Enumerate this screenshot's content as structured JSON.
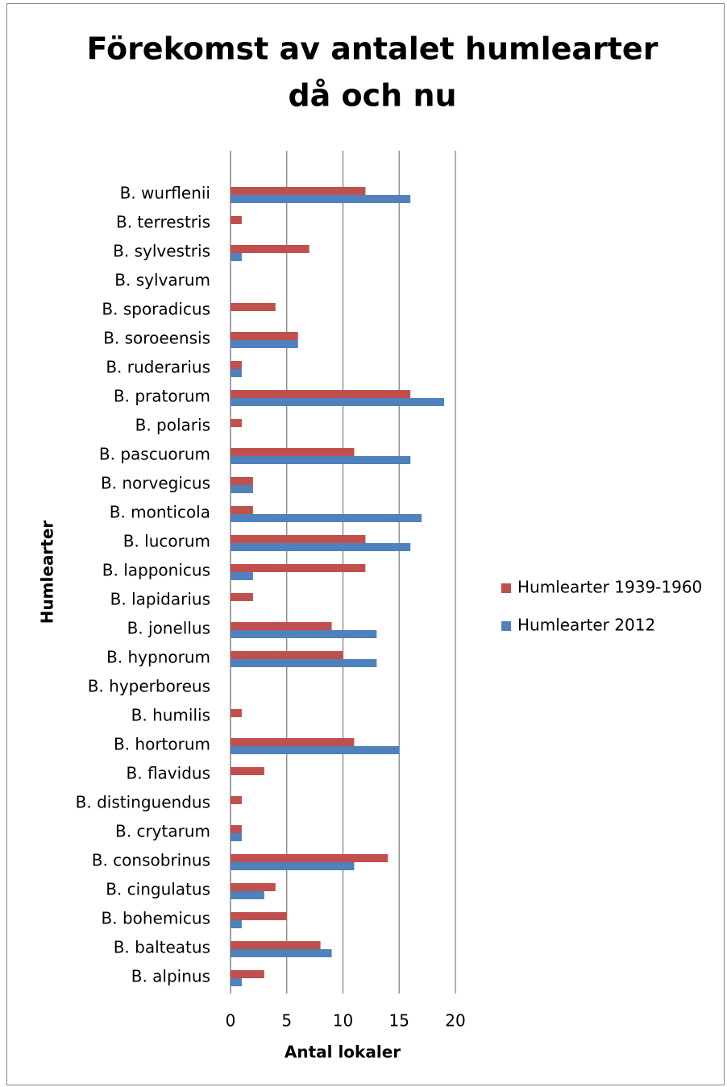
{
  "chart_data": {
    "type": "bar",
    "orientation": "horizontal",
    "title": [
      "Förekomst av antalet humlearter",
      "då och nu"
    ],
    "x_label": "Antal lokaler",
    "y_label": "Humlearter",
    "categories": [
      "B. wurflenii",
      "B. terrestris",
      "B. sylvestris",
      "B. sylvarum",
      "B. sporadicus",
      "B. soroeensis",
      "B. ruderarius",
      "B. pratorum",
      "B. polaris",
      "B. pascuorum",
      "B. norvegicus",
      "B. monticola",
      "B. lucorum",
      "B. lapponicus",
      "B. lapidarius",
      "B. jonellus",
      "B. hypnorum",
      "B. hyperboreus",
      "B. humilis",
      "B. hortorum",
      "B. flavidus",
      "B. distinguendus",
      "B. crytarum",
      "B. consobrinus",
      "B. cingulatus",
      "B. bohemicus",
      "B. balteatus",
      "B. alpinus"
    ],
    "series": [
      {
        "name": "Humlearter 1939-1960",
        "color": "#c0504d",
        "values": [
          12,
          1,
          7,
          0,
          4,
          6,
          1,
          16,
          1,
          11,
          2,
          2,
          12,
          12,
          2,
          9,
          10,
          0,
          1,
          11,
          3,
          1,
          1,
          14,
          4,
          5,
          8,
          3
        ]
      },
      {
        "name": "Humlearter 2012",
        "color": "#4f81bd",
        "values": [
          16,
          0,
          1,
          0,
          0,
          6,
          1,
          19,
          0,
          16,
          2,
          17,
          16,
          2,
          0,
          13,
          13,
          0,
          0,
          15,
          0,
          0,
          1,
          11,
          3,
          1,
          9,
          1
        ]
      }
    ],
    "xlim": [
      0,
      20
    ],
    "xticks": [
      0,
      5,
      10,
      15,
      20
    ],
    "grid": true,
    "legend": "right"
  }
}
